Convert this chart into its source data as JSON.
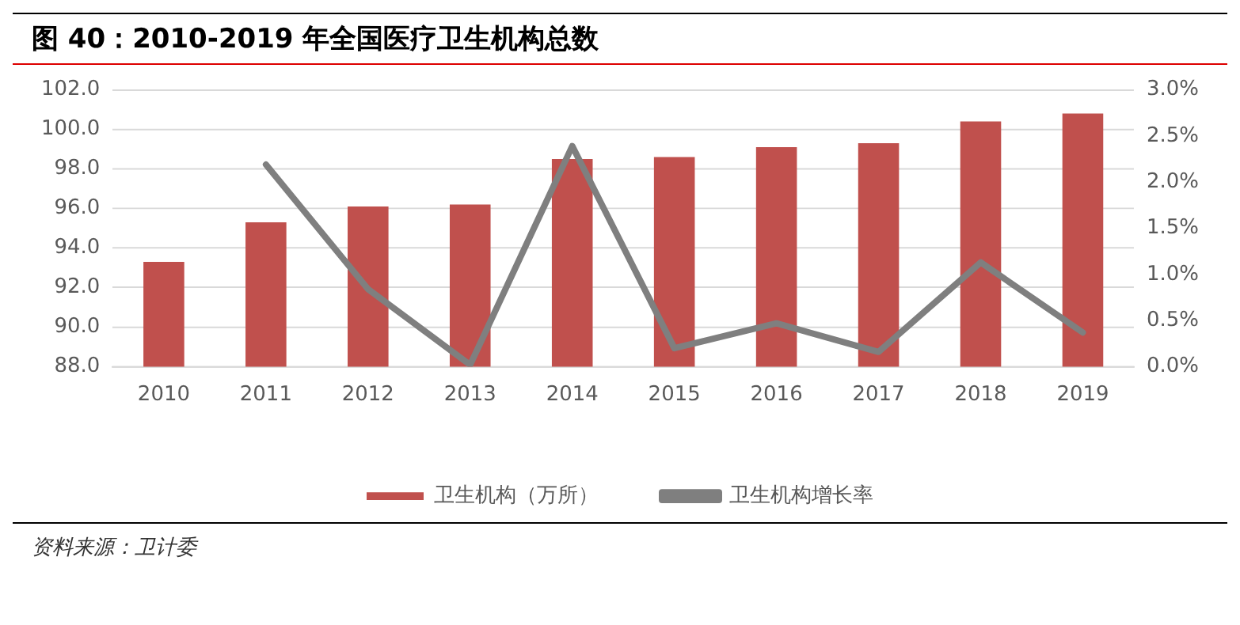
{
  "chart_data": {
    "type": "bar",
    "title": "图 40：2010-2019 年全国医疗卫生机构总数",
    "categories": [
      "2010",
      "2011",
      "2012",
      "2013",
      "2014",
      "2015",
      "2016",
      "2017",
      "2018",
      "2019"
    ],
    "series": [
      {
        "name": "卫生机构（万所）",
        "color": "#c0504d",
        "values": [
          93.3,
          95.3,
          96.1,
          96.2,
          98.5,
          98.6,
          99.1,
          99.3,
          100.4,
          100.8
        ]
      },
      {
        "name": "卫生机构增长率",
        "type": "line",
        "axis": "y2",
        "color": "#7f7f7f",
        "values": [
          null,
          2.19,
          0.84,
          0.02,
          2.39,
          0.2,
          0.47,
          0.16,
          1.13,
          0.37
        ]
      }
    ],
    "ylim": [
      88,
      102
    ],
    "yticks": [
      {
        "value": 88,
        "label": "88.0"
      },
      {
        "value": 90,
        "label": "90.0"
      },
      {
        "value": 92,
        "label": "92.0"
      },
      {
        "value": 94,
        "label": "94.0"
      },
      {
        "value": 96,
        "label": "96.0"
      },
      {
        "value": 98,
        "label": "98.0"
      },
      {
        "value": 100,
        "label": "100.0"
      },
      {
        "value": 102,
        "label": "102.0"
      }
    ],
    "y2lim": [
      0,
      3
    ],
    "y2ticks": [
      {
        "value": 0,
        "label": "0.0%"
      },
      {
        "value": 0.5,
        "label": "0.5%"
      },
      {
        "value": 1,
        "label": "1.0%"
      },
      {
        "value": 1.5,
        "label": "1.5%"
      },
      {
        "value": 2,
        "label": "2.0%"
      },
      {
        "value": 2.5,
        "label": "2.5%"
      },
      {
        "value": 3,
        "label": "3.0%"
      }
    ],
    "grid": "y",
    "legend": "bottom",
    "marker": "none",
    "line_style": "solid",
    "annotations": [
      "资料来源：卫计委"
    ]
  }
}
